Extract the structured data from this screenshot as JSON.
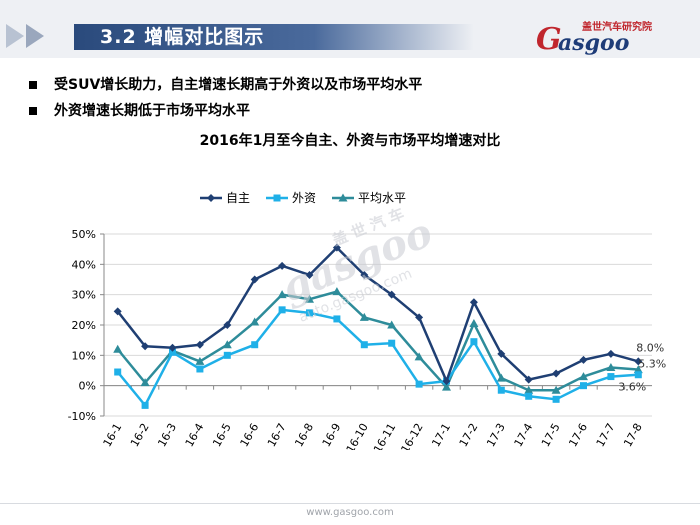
{
  "header": {
    "title": "3.2 增幅对比图示",
    "logo_cn": "盖世汽车研究院",
    "logo_text": "asgoo"
  },
  "bullets": [
    "受SUV增长助力，自主增速长期高于外资以及市场平均水平",
    "外资增速长期低于市场平均水平"
  ],
  "watermark": {
    "cn": "盖 世 汽 车",
    "big": "gasgoo",
    "url": "auto.gasgoo.com"
  },
  "footer": {
    "url": "www.gasgoo.com"
  },
  "colors": {
    "zizhu": "#1f3f73",
    "waizi": "#1fb0e8",
    "pingjun": "#2e8c9a",
    "title_bar": "#2a4a7c"
  },
  "chart_data": {
    "type": "line",
    "title": "2016年1月至今自主、外资与市场平均增速对比",
    "categories": [
      "16-1",
      "16-2",
      "16-3",
      "16-4",
      "16-5",
      "16-6",
      "16-7",
      "16-8",
      "16-9",
      "16-10",
      "16-11",
      "16-12",
      "17-1",
      "17-2",
      "17-3",
      "17-4",
      "17-5",
      "17-6",
      "17-7",
      "17-8"
    ],
    "series": [
      {
        "name": "自主",
        "color": "#1f3f73",
        "marker": "diamond",
        "values": [
          24.5,
          13,
          12.5,
          13.5,
          20,
          35,
          39.5,
          36.5,
          45.5,
          36.5,
          30,
          22.5,
          1.5,
          27.5,
          10.5,
          2,
          4,
          8.5,
          10.5,
          8.0
        ]
      },
      {
        "name": "外资",
        "color": "#1fb0e8",
        "marker": "square",
        "values": [
          4.5,
          -6.5,
          11,
          5.5,
          10,
          13.5,
          25,
          24,
          22,
          13.5,
          14,
          0.5,
          1.5,
          14.5,
          -1.5,
          -3.5,
          -4.5,
          0,
          3,
          3.6
        ]
      },
      {
        "name": "平均水平",
        "color": "#2e8c9a",
        "marker": "triangle",
        "values": [
          12,
          1,
          11.5,
          8,
          13.5,
          21,
          30,
          28.5,
          31,
          22.5,
          20,
          9.5,
          -0.5,
          20.5,
          2.5,
          -1.5,
          -1.5,
          3,
          6,
          5.3
        ]
      }
    ],
    "data_labels": [
      {
        "series": "自主",
        "category": "17-8",
        "text": "8.0%"
      },
      {
        "series": "平均水平",
        "category": "17-8",
        "text": "5.3%"
      },
      {
        "series": "外资",
        "category": "17-8",
        "text": "3.6%"
      }
    ],
    "yticks": [
      "-10%",
      "0%",
      "10%",
      "20%",
      "30%",
      "40%",
      "50%"
    ],
    "ylim": [
      -10,
      50
    ],
    "legend_position": "top-left",
    "grid": true
  }
}
